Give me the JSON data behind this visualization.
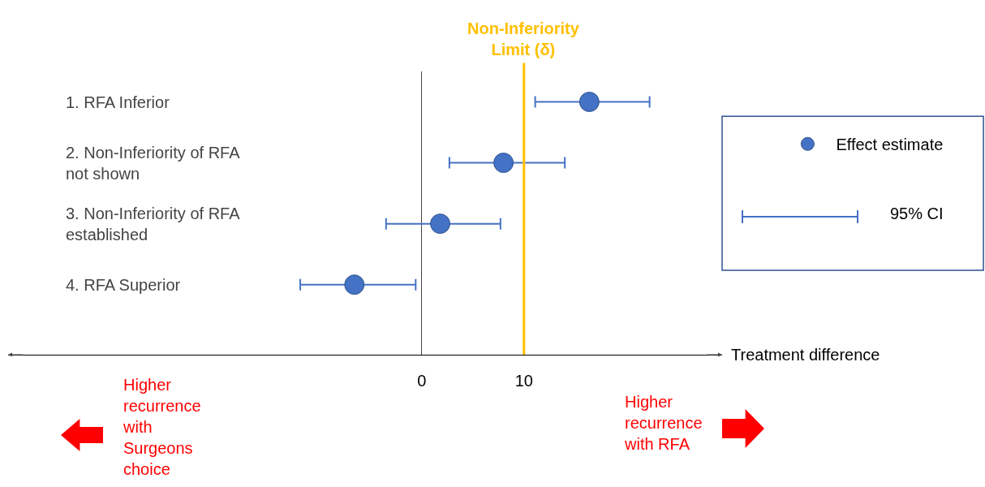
{
  "chart_data": {
    "type": "scatter",
    "orientation": "horizontal",
    "xlabel": "Treatment difference",
    "categories": [
      "1. RFA Inferior",
      "2. Non-Inferiority of RFA not shown",
      "3. Non-Inferiority of RFA established",
      "4. RFA Superior"
    ],
    "series": [
      {
        "name": "Effect estimate",
        "color": "#4472c4",
        "values": [
          16.4,
          8.0,
          1.8,
          -6.6
        ],
        "errors": [
          [
            11.1,
            22.3
          ],
          [
            2.7,
            14.0
          ],
          [
            -3.5,
            7.7
          ],
          [
            -11.9,
            -0.6
          ]
        ]
      }
    ],
    "xlim": [
      -40.5,
      29.4
    ],
    "xticks": [
      0,
      10
    ],
    "ref_lines": [
      {
        "axis": "x",
        "value": 10,
        "label": "Non-Inferiority Limit (δ)",
        "color": "#ffc000"
      }
    ],
    "annotations": [
      "95% CI",
      "Higher recurrence with Surgeons choice",
      "Higher recurrence with RFA"
    ],
    "legend": "right",
    "grid": false,
    "marker": "circle"
  }
}
